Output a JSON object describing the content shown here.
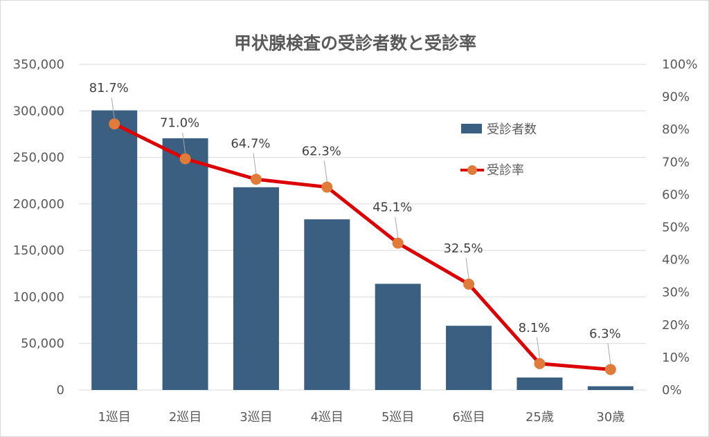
{
  "chart_data": {
    "type": "bar+line",
    "title": "甲状腺検査の受診者数と受診率",
    "categories": [
      "1巡目",
      "2巡目",
      "3巡目",
      "4巡目",
      "5巡目",
      "6巡目",
      "25歳",
      "30歳"
    ],
    "series": [
      {
        "name": "受診者数",
        "type": "bar",
        "axis": "left",
        "color": "#3a5f80",
        "values": [
          300500,
          270500,
          217900,
          183400,
          114100,
          69000,
          13400,
          4000
        ]
      },
      {
        "name": "受診率",
        "type": "line",
        "axis": "right",
        "color": "#dd0000",
        "marker_color": "#e07b39",
        "values": [
          81.7,
          71.0,
          64.7,
          62.3,
          45.1,
          32.5,
          8.1,
          6.3
        ],
        "labels": [
          "81.7%",
          "71.0%",
          "64.7%",
          "62.3%",
          "45.1%",
          "32.5%",
          "8.1%",
          "6.3%"
        ]
      }
    ],
    "y_left": {
      "range": [
        0,
        350000
      ],
      "ticks": [
        "0",
        "50,000",
        "100,000",
        "150,000",
        "200,000",
        "250,000",
        "300,000",
        "350,000"
      ]
    },
    "y_right": {
      "range": [
        0,
        100
      ],
      "ticks": [
        "0%",
        "10%",
        "20%",
        "30%",
        "40%",
        "50%",
        "60%",
        "70%",
        "80%",
        "90%",
        "100%"
      ]
    },
    "grid": true,
    "legend": "top-right inside plot"
  }
}
